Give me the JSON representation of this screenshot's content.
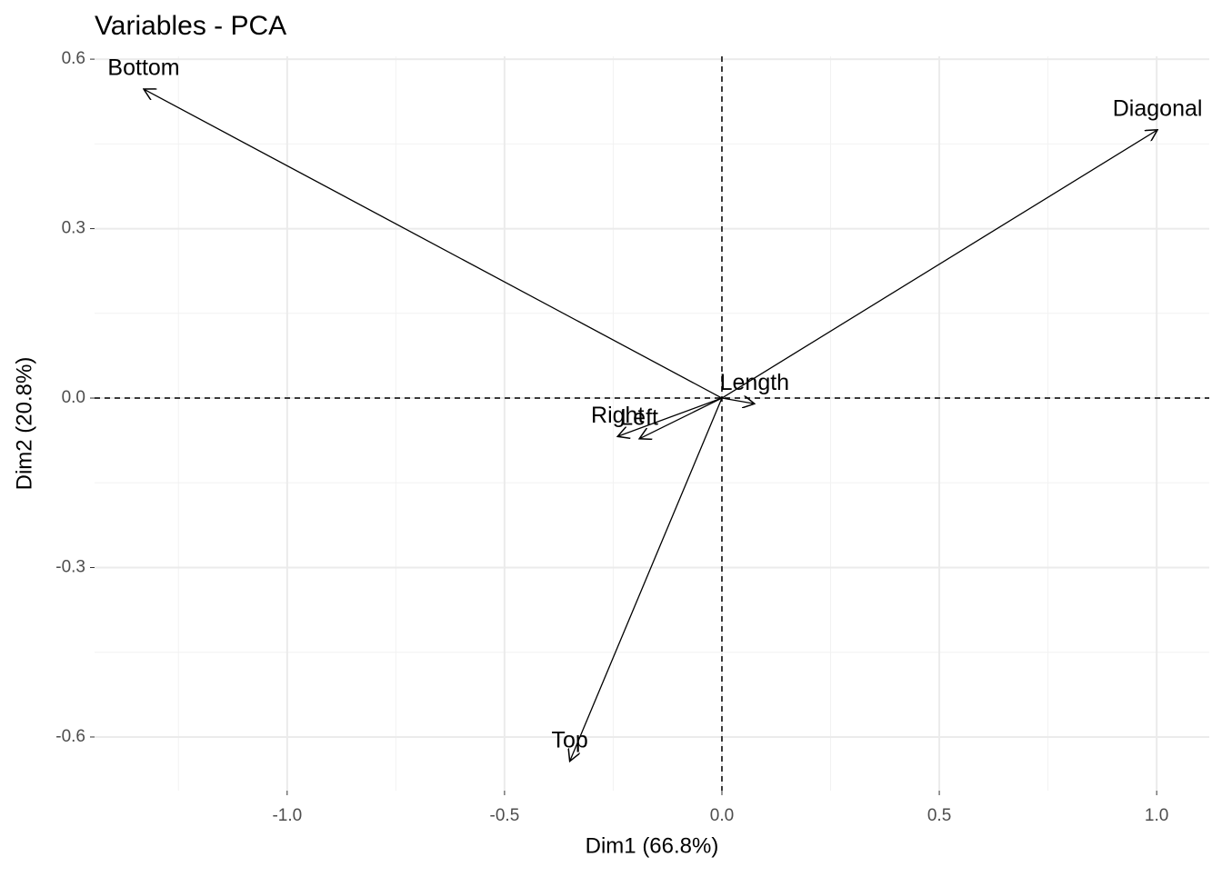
{
  "chart_data": {
    "type": "vector",
    "title": "Variables - PCA",
    "x_label": "Dim1 (66.8%)",
    "y_label": "Dim2 (20.8%)",
    "categories": [
      "Length",
      "Left",
      "Right",
      "Bottom",
      "Top",
      "Diagonal"
    ],
    "x": [
      0.075,
      -0.19,
      -0.24,
      -1.33,
      -0.35,
      1.002
    ],
    "values": [
      -0.01,
      -0.072,
      -0.068,
      0.547,
      -0.643,
      0.475
    ],
    "color": "#000000",
    "xlim": [
      -1.443,
      1.121
    ],
    "ylim": [
      -0.695,
      0.605
    ],
    "xticks": [
      {
        "value": -1.0,
        "label": "-1.0"
      },
      -0.5,
      {
        "value": 0,
        "label": "0.0"
      },
      0.5,
      {
        "value": 1.0,
        "label": "1.0"
      }
    ],
    "yticks": [
      -0.6,
      -0.3,
      {
        "value": 0,
        "label": "0.0"
      },
      0.3,
      0.6
    ],
    "grid": true,
    "origin_lines": true
  }
}
